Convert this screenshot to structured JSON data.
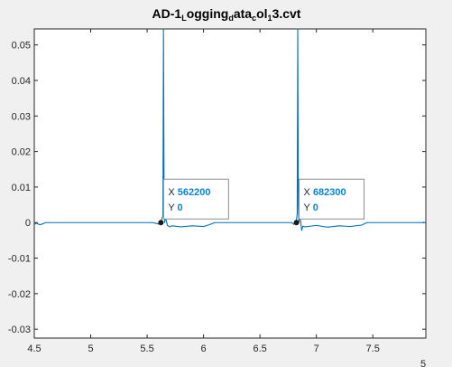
{
  "chart_data": {
    "type": "line",
    "title_parts": [
      {
        "text": "AD-1",
        "sub": false
      },
      {
        "text": "L",
        "sub": true
      },
      {
        "text": "ogging",
        "sub": false
      },
      {
        "text": "d",
        "sub": true
      },
      {
        "text": "ata",
        "sub": false
      },
      {
        "text": "c",
        "sub": true
      },
      {
        "text": "ol",
        "sub": false
      },
      {
        "text": "1",
        "sub": true
      },
      {
        "text": "3.cvt",
        "sub": false
      }
    ],
    "xlim": [
      4.5,
      7.97
    ],
    "ylim": [
      -0.0325,
      0.0545
    ],
    "x_ticks": [
      4.5,
      5,
      5.5,
      6,
      6.5,
      7,
      7.5
    ],
    "x_tick_labels": [
      "4.5",
      "5",
      "5.5",
      "6",
      "6.5",
      "7",
      "7.5"
    ],
    "y_ticks": [
      0.05,
      0.04,
      0.03,
      0.02,
      0.01,
      0,
      -0.01,
      -0.02,
      -0.03
    ],
    "y_tick_labels": [
      "0.05",
      "0.04",
      "0.03",
      "0.02",
      "0.01",
      "0",
      "-0.01",
      "-0.02",
      "-0.03"
    ],
    "x_exponent_label": "5",
    "x_multiplier": 100000,
    "grid": false,
    "line_color": "#0072bd",
    "series": [
      {
        "x": [
          4.5,
          4.52,
          4.55,
          4.58,
          4.6,
          4.7,
          4.8,
          5.0,
          5.2,
          5.4,
          5.55,
          5.6,
          5.62,
          5.64,
          5.645,
          5.65,
          5.655,
          5.66,
          5.67,
          5.68,
          5.7,
          5.72,
          5.8,
          5.9,
          6.0,
          6.05,
          6.1,
          6.2,
          6.4,
          6.6,
          6.78,
          6.8,
          6.82,
          6.83,
          6.835,
          6.84,
          6.845,
          6.85,
          6.86,
          6.87,
          6.88,
          6.9,
          7.0,
          7.1,
          7.2,
          7.3,
          7.4,
          7.45,
          7.6,
          7.97
        ],
        "y": [
          -0.0005,
          -0.0002,
          -0.0006,
          -0.0003,
          0,
          0,
          0,
          0,
          0,
          0,
          0,
          -0.0004,
          0,
          0.002,
          0.06,
          0.01,
          0.0,
          0.0015,
          0.0005,
          -0.0008,
          -0.0012,
          -0.0009,
          -0.0012,
          -0.0009,
          -0.0011,
          -0.0006,
          0,
          0,
          0,
          0,
          0,
          -0.0005,
          0,
          0.0025,
          0.06,
          0.005,
          0.0,
          0.001,
          0.0005,
          -0.0022,
          -0.001,
          -0.0012,
          -0.0008,
          -0.0013,
          -0.0009,
          -0.0011,
          -0.0007,
          0,
          0,
          0
        ]
      }
    ],
    "datatips": [
      {
        "x_label": "X",
        "x_value": "562200",
        "y_label": "Y",
        "y_value": "0",
        "x": 5.622,
        "y": 0
      },
      {
        "x_label": "X",
        "x_value": "682300",
        "y_label": "Y",
        "y_value": "0",
        "x": 6.823,
        "y": 0
      }
    ]
  }
}
